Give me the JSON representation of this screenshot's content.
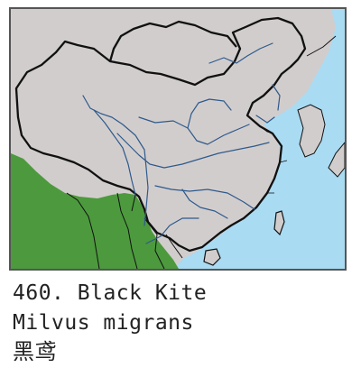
{
  "species": {
    "number": "460.",
    "common_name": "Black Kite",
    "scientific_name": "Milvus migrans",
    "chinese_name": "黑鸢"
  },
  "colors": {
    "sea": "#a9dbf2",
    "land": "#d2cdcd",
    "range": "#4c9a3d",
    "border": "#111111",
    "river": "#2d5a8c",
    "frame": "#555555"
  }
}
